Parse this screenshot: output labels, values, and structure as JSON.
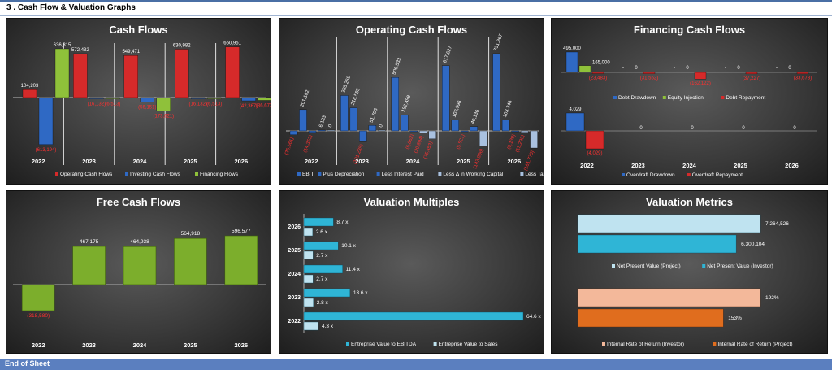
{
  "sheet": {
    "title": "3 .  Cash Flow & Valuation Graphs",
    "footer": "End of Sheet"
  },
  "colors": {
    "red": "#d62a2a",
    "blue": "#2f69c4",
    "green": "#8fc13a",
    "cyan": "#2fb5d6",
    "lightblue": "#bfe3f0",
    "peach": "#f3b89a",
    "orange": "#e06d1e",
    "fcf": "#7cae2c"
  },
  "chart_data": [
    {
      "id": "cash-flows",
      "type": "bar",
      "title": "Cash Flows",
      "categories": [
        "2022",
        "2023",
        "2024",
        "2025",
        "2026"
      ],
      "series": [
        {
          "name": "Operating Cash Flows",
          "values": [
            104203,
            572432,
            549471,
            630982,
            660951
          ],
          "labels": [
            "104,203",
            "572,432",
            "549,471",
            "630,982",
            "660,951"
          ]
        },
        {
          "name": "Investing Cash Flows",
          "values": [
            -613194,
            -16132,
            -56151,
            -16132,
            -42367
          ],
          "labels": [
            "(613,194)",
            "(16,132)",
            "(56,151)",
            "(16,132)",
            "(42,367)"
          ]
        },
        {
          "name": "Financing Flows",
          "values": [
            636315,
            -6513,
            -173621,
            -6513,
            -36673
          ],
          "labels": [
            "636,315",
            "(6,513)",
            "(173,621)",
            "(6,513)",
            "(36,673)"
          ]
        }
      ]
    },
    {
      "id": "operating-cash-flows",
      "type": "bar",
      "title": "Operating Cash Flows",
      "categories": [
        "2022",
        "2023",
        "2024",
        "2025",
        "2026"
      ],
      "series": [
        {
          "name": "EBIT",
          "values": [
            -36561,
            335259,
            506533,
            617627,
            731867
          ],
          "labels": [
            "(36,561)",
            "335,259",
            "506,533",
            "617,627",
            "731,867"
          ]
        },
        {
          "name": "Plus Depreciation",
          "values": [
            201182,
            218583,
            152458,
            102596,
            103346
          ],
          "labels": [
            "201,182",
            "218,583",
            "152,458",
            "102,596",
            "103,346"
          ]
        },
        {
          "name": "Less Interest Paid",
          "values": [
            -14353,
            -101235,
            -6862,
            -5521,
            -6138
          ],
          "labels": [
            "(14,353)",
            "(101,235)",
            "(6,862)",
            "(5,521)",
            "(6,138)"
          ]
        },
        {
          "name": "Less Δ in Working Capital",
          "values": [
            6133,
            51705,
            -20894,
            40136,
            -13298
          ],
          "labels": [
            "6,133",
            "51,705",
            "(20,894)",
            "40,136",
            "(13,298)"
          ]
        },
        {
          "name": "Less Taxes Paid",
          "values": [
            0,
            0,
            -75453,
            -143856,
            -161775
          ],
          "labels": [
            "0",
            "0",
            "(75,453)",
            "(143,856)",
            "(161,775)"
          ]
        }
      ]
    },
    {
      "id": "financing-cash-flows-debt",
      "type": "bar",
      "title": "Financing Cash Flows",
      "categories": [
        "2022",
        "2023",
        "2024",
        "2025",
        "2026"
      ],
      "series": [
        {
          "name": "Debt Drawdown",
          "values": [
            495000,
            0,
            0,
            0,
            0
          ],
          "labels": [
            "495,000",
            "-",
            "-",
            "-",
            "-"
          ]
        },
        {
          "name": "Equity Injection",
          "values": [
            165000,
            0,
            0,
            0,
            0
          ],
          "labels": [
            "165,000",
            "0",
            "0",
            "0",
            "0"
          ]
        },
        {
          "name": "Debt Repayment",
          "values": [
            -23483,
            -31552,
            -162122,
            -37227,
            -33673
          ],
          "labels": [
            "(23,483)",
            "(31,552)",
            "(162,122)",
            "(37,227)",
            "(33,673)"
          ]
        }
      ]
    },
    {
      "id": "financing-cash-flows-overdraft",
      "type": "bar",
      "categories": [
        "2022",
        "2023",
        "2024",
        "2025",
        "2026"
      ],
      "series": [
        {
          "name": "Overdraft Drawdown",
          "values": [
            4029,
            0,
            0,
            0,
            0
          ],
          "labels": [
            "4,029",
            "-",
            "-",
            "-",
            "-"
          ]
        },
        {
          "name": "Overdraft Repayment",
          "values": [
            -4029,
            0,
            0,
            0,
            0
          ],
          "labels": [
            "(4,029)",
            "0",
            "0",
            "0",
            "0"
          ]
        }
      ]
    },
    {
      "id": "free-cash-flows",
      "type": "bar",
      "title": "Free Cash Flows",
      "categories": [
        "2022",
        "2023",
        "2024",
        "2025",
        "2026"
      ],
      "values": [
        -318580,
        467175,
        464938,
        564918,
        596577
      ],
      "labels": [
        "(318,580)",
        "467,175",
        "464,938",
        "564,918",
        "596,577"
      ]
    },
    {
      "id": "valuation-multiples",
      "type": "bar",
      "orientation": "horizontal",
      "title": "Valuation Multiples",
      "categories": [
        "2026",
        "2025",
        "2024",
        "2023",
        "2022"
      ],
      "series": [
        {
          "name": "Entreprise Value to EBITDA",
          "values": [
            8.7,
            10.1,
            11.4,
            13.6,
            64.6
          ],
          "labels": [
            "8.7 x",
            "10.1 x",
            "11.4 x",
            "13.6 x",
            "64.6 x"
          ]
        },
        {
          "name": "Entreprise Value to Sales",
          "values": [
            2.6,
            2.7,
            2.7,
            2.8,
            4.3
          ],
          "labels": [
            "2.6 x",
            "2.7 x",
            "2.7 x",
            "2.8 x",
            "4.3 x"
          ]
        }
      ]
    },
    {
      "id": "valuation-metrics-npv",
      "type": "bar",
      "orientation": "horizontal",
      "title": "Valuation Metrics",
      "series": [
        {
          "name": "Net Present Value (Project)",
          "value": 7264526,
          "label": "7,264,526"
        },
        {
          "name": "Net Present Value (Investor)",
          "value": 6300104,
          "label": "6,300,104"
        }
      ]
    },
    {
      "id": "valuation-metrics-irr",
      "type": "bar",
      "orientation": "horizontal",
      "series": [
        {
          "name": "Internal Rate of Return (Investor)",
          "value": 192,
          "label": "192%"
        },
        {
          "name": "Internal Rate of Return (Project)",
          "value": 153,
          "label": "153%"
        }
      ]
    }
  ]
}
